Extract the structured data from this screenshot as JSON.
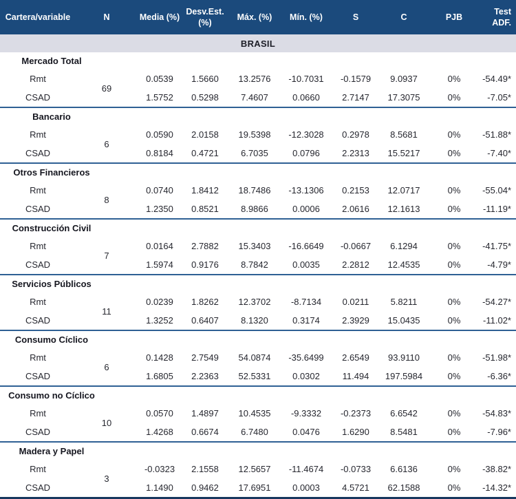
{
  "table": {
    "columns": [
      "Cartera/variable",
      "N",
      "Media (%)",
      "Desv.Est. (%)",
      "Máx. (%)",
      "Mín. (%)",
      "S",
      "C",
      "PJB",
      "Test ADF."
    ],
    "region_label": "BRASIL",
    "groups": [
      {
        "name": "Mercado Total",
        "n": "69",
        "rows": [
          {
            "label": "Rmt",
            "values": [
              "0.0539",
              "1.5660",
              "13.2576",
              "-10.7031",
              "-0.1579",
              "9.0937",
              "0%",
              "-54.49*"
            ]
          },
          {
            "label": "CSAD",
            "values": [
              "1.5752",
              "0.5298",
              "7.4607",
              "0.0660",
              "2.7147",
              "17.3075",
              "0%",
              "-7.05*"
            ]
          }
        ]
      },
      {
        "name": "Bancario",
        "n": "6",
        "rows": [
          {
            "label": "Rmt",
            "values": [
              "0.0590",
              "2.0158",
              "19.5398",
              "-12.3028",
              "0.2978",
              "8.5681",
              "0%",
              "-51.88*"
            ]
          },
          {
            "label": "CSAD",
            "values": [
              "0.8184",
              "0.4721",
              "6.7035",
              "0.0796",
              "2.2313",
              "15.5217",
              "0%",
              "-7.40*"
            ]
          }
        ]
      },
      {
        "name": "Otros Financieros",
        "n": "8",
        "rows": [
          {
            "label": "Rmt",
            "values": [
              "0.0740",
              "1.8412",
              "18.7486",
              "-13.1306",
              "0.2153",
              "12.0717",
              "0%",
              "-55.04*"
            ]
          },
          {
            "label": "CSAD",
            "values": [
              "1.2350",
              "0.8521",
              "8.9866",
              "0.0006",
              "2.0616",
              "12.1613",
              "0%",
              "-11.19*"
            ]
          }
        ]
      },
      {
        "name": "Construcción Civil",
        "n": "7",
        "rows": [
          {
            "label": "Rmt",
            "values": [
              "0.0164",
              "2.7882",
              "15.3403",
              "-16.6649",
              "-0.0667",
              "6.1294",
              "0%",
              "-41.75*"
            ]
          },
          {
            "label": "CSAD",
            "values": [
              "1.5974",
              "0.9176",
              "8.7842",
              "0.0035",
              "2.2812",
              "12.4535",
              "0%",
              "-4.79*"
            ]
          }
        ]
      },
      {
        "name": "Servicios Públicos",
        "n": "11",
        "rows": [
          {
            "label": "Rmt",
            "values": [
              "0.0239",
              "1.8262",
              "12.3702",
              "-8.7134",
              "0.0211",
              "5.8211",
              "0%",
              "-54.27*"
            ]
          },
          {
            "label": "CSAD",
            "values": [
              "1.3252",
              "0.6407",
              "8.1320",
              "0.3174",
              "2.3929",
              "15.0435",
              "0%",
              "-11.02*"
            ]
          }
        ]
      },
      {
        "name": "Consumo Cíclico",
        "n": "6",
        "rows": [
          {
            "label": "Rmt",
            "values": [
              "0.1428",
              "2.7549",
              "54.0874",
              "-35.6499",
              "2.6549",
              "93.9110",
              "0%",
              "-51.98*"
            ]
          },
          {
            "label": "CSAD",
            "values": [
              "1.6805",
              "2.2363",
              "52.5331",
              "0.0302",
              "11.494",
              "197.5984",
              "0%",
              "-6.36*"
            ]
          }
        ]
      },
      {
        "name": "Consumo no Cíclico",
        "n": "10",
        "rows": [
          {
            "label": "Rmt",
            "values": [
              "0.0570",
              "1.4897",
              "10.4535",
              "-9.3332",
              "-0.2373",
              "6.6542",
              "0%",
              "-54.83*"
            ]
          },
          {
            "label": "CSAD",
            "values": [
              "1.4268",
              "0.6674",
              "6.7480",
              "0.0476",
              "1.6290",
              "8.5481",
              "0%",
              "-7.96*"
            ]
          }
        ]
      },
      {
        "name": "Madera y Papel",
        "n": "3",
        "rows": [
          {
            "label": "Rmt",
            "values": [
              "-0.0323",
              "2.1558",
              "12.5657",
              "-11.4674",
              "-0.0733",
              "6.6136",
              "0%",
              "-38.82*"
            ]
          },
          {
            "label": "CSAD",
            "values": [
              "1.1490",
              "0.9462",
              "17.6951",
              "0.0003",
              "4.5721",
              "62.1588",
              "0%",
              "-14.32*"
            ]
          }
        ]
      }
    ]
  },
  "colors": {
    "header_bg": "#1b4a7c",
    "band_bg": "#dbdce5",
    "group_separator": "#2e6094",
    "bottom_border": "#17375e",
    "header_text": "#ffffff",
    "body_text": "#26272f"
  }
}
